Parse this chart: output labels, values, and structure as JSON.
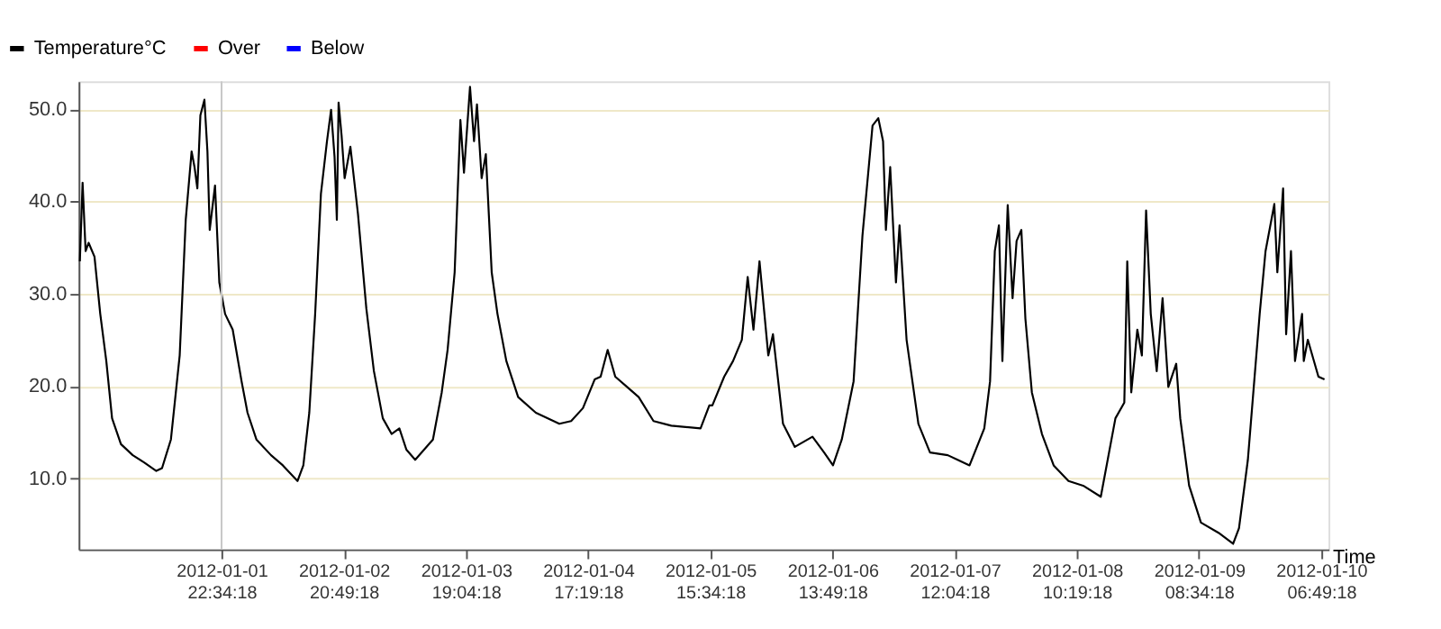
{
  "chart_data": {
    "type": "line",
    "xlabel": "Time",
    "legend": "top left",
    "grid": "y",
    "line_style": "solid",
    "marker": "none",
    "xlim": [
      "2011-12-31T20:32",
      "2012-01-10T08:09"
    ],
    "xticks": [
      {
        "value": "2012-01-01T22:34:18",
        "label": "2012-01-01\n22:34:18"
      },
      {
        "value": "2012-01-02T20:49:18",
        "label": "2012-01-02\n20:49:18"
      },
      {
        "value": "2012-01-03T19:04:18",
        "label": "2012-01-03\n19:04:18"
      },
      {
        "value": "2012-01-04T17:19:18",
        "label": "2012-01-04\n17:19:18"
      },
      {
        "value": "2012-01-05T15:34:18",
        "label": "2012-01-05\n15:34:18"
      },
      {
        "value": "2012-01-06T13:49:18",
        "label": "2012-01-06\n13:49:18"
      },
      {
        "value": "2012-01-07T12:04:18",
        "label": "2012-01-07\n12:04:18"
      },
      {
        "value": "2012-01-08T10:19:18",
        "label": "2012-01-08\n10:19:18"
      },
      {
        "value": "2012-01-09T08:34:18",
        "label": "2012-01-09\n08:34:18"
      },
      {
        "value": "2012-01-10T06:49:18",
        "label": "2012-01-10\n06:49:18"
      }
    ],
    "ylim": [
      2.3,
      53.0
    ],
    "yticks": [
      {
        "value": 10,
        "label": "10.0"
      },
      {
        "value": 20,
        "label": "20.0"
      },
      {
        "value": 30,
        "label": "30.0"
      },
      {
        "value": 40,
        "label": "40.0"
      },
      {
        "value": 50,
        "label": "50.0"
      }
    ],
    "ref_lines": [
      {
        "axis": "x",
        "value": "2012-01-01T22:34:18",
        "color": "#c8c8c8"
      }
    ],
    "series": [
      {
        "name": "Temperature°C",
        "color": "#000000",
        "x": [
          "2011-12-31T20:46",
          "2011-12-31T21:16",
          "2011-12-31T21:49",
          "2011-12-31T22:22",
          "2011-12-31T23:26",
          "2012-01-01T00:29",
          "2012-01-01T01:35",
          "2012-01-01T02:38",
          "2012-01-01T04:15",
          "2012-01-01T06:24",
          "2012-01-01T08:31",
          "2012-01-01T10:41",
          "2012-01-01T11:44",
          "2012-01-01T13:21",
          "2012-01-01T14:57",
          "2012-01-01T16:03",
          "2012-01-01T17:07",
          "2012-01-01T17:39",
          "2012-01-01T18:10",
          "2012-01-01T18:43",
          "2012-01-01T19:27",
          "2012-01-01T20:00",
          "2012-01-01T20:25",
          "2012-01-01T21:23",
          "2012-01-01T22:10",
          "2012-01-01T23:13",
          "2012-01-02T00:36",
          "2012-01-02T02:13",
          "2012-01-02T03:18",
          "2012-01-02T04:55",
          "2012-01-02T07:35",
          "2012-01-02T09:44",
          "2012-01-02T12:24",
          "2012-01-02T13:28",
          "2012-01-02T14:33",
          "2012-01-02T15:37",
          "2012-01-02T16:40",
          "2012-01-02T17:46",
          "2012-01-02T18:31",
          "2012-01-02T19:09",
          "2012-01-02T19:34",
          "2012-01-02T19:53",
          "2012-01-02T20:26",
          "2012-01-02T20:59",
          "2012-01-02T22:02",
          "2012-01-02T23:25",
          "2012-01-03T00:56",
          "2012-01-03T02:19",
          "2012-01-03T03:56",
          "2012-01-03T05:32",
          "2012-01-03T06:57",
          "2012-01-03T08:14",
          "2012-01-03T09:50",
          "2012-01-03T11:27",
          "2012-01-03T13:04",
          "2012-01-03T14:40",
          "2012-01-03T15:44",
          "2012-01-03T17:01",
          "2012-01-03T18:04",
          "2012-01-03T18:43",
          "2012-01-03T19:49",
          "2012-01-03T20:33",
          "2012-01-03T21:05",
          "2012-01-03T21:56",
          "2012-01-03T22:42",
          "2012-01-03T23:46",
          "2012-01-04T00:49",
          "2012-01-04T02:26",
          "2012-01-04T04:35",
          "2012-01-04T07:48",
          "2012-01-04T12:05",
          "2012-01-04T14:14",
          "2012-01-04T16:23",
          "2012-01-04T18:31",
          "2012-01-04T19:36",
          "2012-01-04T20:53",
          "2012-01-04T22:16",
          "2012-01-05T00:25",
          "2012-01-05T02:32",
          "2012-01-05T05:14",
          "2012-01-05T08:28",
          "2012-01-05T13:48",
          "2012-01-05T15:24",
          "2012-01-05T15:57",
          "2012-01-05T18:06",
          "2012-01-05T19:43",
          "2012-01-05T21:19",
          "2012-01-05T22:23",
          "2012-01-05T23:26",
          "2012-01-06T00:32",
          "2012-01-06T02:08",
          "2012-01-06T02:59",
          "2012-01-06T04:49",
          "2012-01-06T06:58",
          "2012-01-06T10:11",
          "2012-01-06T12:18",
          "2012-01-06T13:55",
          "2012-01-06T15:31",
          "2012-01-06T17:40",
          "2012-01-06T19:17",
          "2012-01-06T20:20",
          "2012-01-06T21:07",
          "2012-01-06T22:10",
          "2012-01-06T23:02",
          "2012-01-06T23:33",
          "2012-01-07T00:20",
          "2012-01-07T01:23",
          "2012-01-07T02:02",
          "2012-01-07T03:19",
          "2012-01-07T05:28",
          "2012-01-07T07:35",
          "2012-01-07T10:49",
          "2012-01-07T14:47",
          "2012-01-07T17:28",
          "2012-01-07T18:31",
          "2012-01-07T19:23",
          "2012-01-07T20:08",
          "2012-01-07T20:46",
          "2012-01-07T21:44",
          "2012-01-07T22:37",
          "2012-01-07T23:21",
          "2012-01-08T00:13",
          "2012-01-08T00:57",
          "2012-01-08T02:08",
          "2012-01-08T03:58",
          "2012-01-08T06:06",
          "2012-01-08T08:48",
          "2012-01-08T11:28",
          "2012-01-08T14:41",
          "2012-01-08T17:21",
          "2012-01-08T18:58",
          "2012-01-08T19:30",
          "2012-01-08T20:14",
          "2012-01-08T21:20",
          "2012-01-08T22:10",
          "2012-01-08T22:56",
          "2012-01-08T23:47",
          "2012-01-09T00:52",
          "2012-01-09T01:56",
          "2012-01-09T02:59",
          "2012-01-09T04:25",
          "2012-01-09T05:09",
          "2012-01-09T06:46",
          "2012-01-09T08:55",
          "2012-01-09T12:07",
          "2012-01-09T14:47",
          "2012-01-09T15:51",
          "2012-01-09T17:28",
          "2012-01-09T19:37",
          "2012-01-09T20:41",
          "2012-01-09T22:17",
          "2012-01-09T22:50",
          "2012-01-09T23:53",
          "2012-01-10T00:26",
          "2012-01-10T01:19",
          "2012-01-10T02:03",
          "2012-01-10T03:20",
          "2012-01-10T03:39",
          "2012-01-10T04:23",
          "2012-01-10T06:19",
          "2012-01-10T07:25"
        ],
        "values": [
          33.5,
          42.0,
          34.6,
          35.5,
          34.0,
          27.8,
          22.7,
          16.5,
          13.7,
          12.5,
          11.7,
          10.8,
          11.1,
          14.2,
          23.3,
          38.0,
          45.4,
          43.7,
          41.4,
          49.3,
          51.0,
          45.4,
          36.9,
          41.7,
          31.2,
          27.8,
          26.1,
          20.5,
          17.1,
          14.2,
          12.5,
          11.4,
          9.7,
          11.4,
          17.1,
          27.8,
          40.8,
          46.5,
          49.9,
          44.8,
          38.0,
          50.7,
          47.1,
          42.5,
          45.9,
          38.6,
          28.4,
          21.6,
          16.5,
          14.8,
          15.4,
          13.1,
          12.0,
          13.1,
          14.2,
          19.3,
          23.9,
          32.3,
          48.8,
          43.1,
          52.4,
          46.5,
          50.5,
          42.5,
          45.1,
          32.3,
          27.8,
          22.7,
          18.8,
          17.1,
          15.9,
          16.2,
          17.6,
          20.7,
          21.0,
          23.9,
          21.0,
          19.9,
          18.8,
          16.2,
          15.7,
          15.4,
          17.9,
          17.9,
          21.0,
          22.7,
          25.0,
          31.8,
          26.1,
          33.5,
          23.3,
          25.6,
          15.9,
          13.4,
          14.5,
          12.8,
          11.4,
          14.2,
          20.5,
          36.3,
          43.1,
          48.2,
          49.0,
          46.5,
          36.9,
          43.7,
          31.2,
          37.4,
          25.0,
          15.9,
          12.8,
          12.5,
          11.4,
          15.4,
          20.5,
          34.6,
          37.4,
          22.7,
          39.6,
          29.5,
          35.7,
          36.9,
          27.3,
          19.3,
          14.8,
          11.4,
          9.7,
          9.2,
          8.0,
          16.5,
          18.2,
          33.5,
          19.3,
          26.1,
          23.3,
          39.0,
          27.8,
          21.6,
          29.5,
          19.9,
          22.4,
          16.5,
          9.2,
          5.2,
          4.1,
          2.9,
          4.6,
          12.0,
          27.8,
          34.6,
          39.7,
          32.3,
          41.4,
          25.6,
          34.6,
          22.7,
          27.8,
          22.7,
          25.0,
          21.0,
          20.7
        ]
      },
      {
        "name": "Over",
        "color": "#ff0000"
      },
      {
        "name": "Below",
        "color": "#0000ff"
      }
    ]
  }
}
